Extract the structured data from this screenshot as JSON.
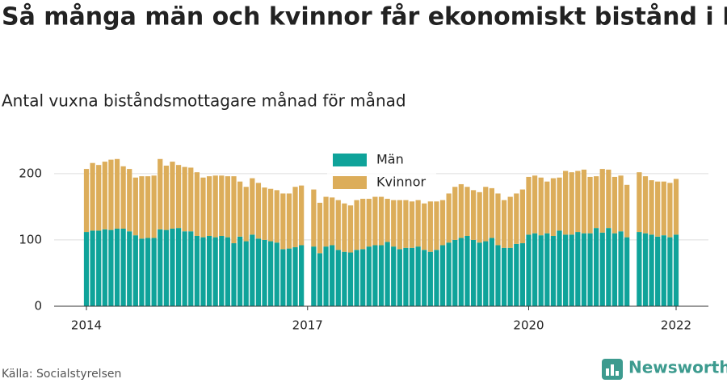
{
  "chart_data": {
    "type": "stacked_bar",
    "title": "Så många män och kvinnor får ekonomiskt bistånd i Kil",
    "subtitle": "Antal vuxna biståndsmottagare månad för månad",
    "source": "Källa: Socialstyrelsen",
    "logo": "Newsworthy",
    "categories": [
      "2014",
      null,
      null,
      null,
      null,
      null,
      null,
      null,
      null,
      null,
      null,
      null,
      null,
      null,
      null,
      null,
      null,
      null,
      null,
      null,
      null,
      null,
      null,
      null,
      null,
      null,
      null,
      null,
      null,
      null,
      null,
      null,
      null,
      null,
      null,
      null,
      "2017",
      null,
      null,
      null,
      null,
      null,
      null,
      null,
      null,
      null,
      null,
      null,
      null,
      null,
      null,
      null,
      null,
      null,
      null,
      null,
      null,
      null,
      null,
      null,
      null,
      null,
      null,
      null,
      null,
      null,
      null,
      null,
      null,
      null,
      null,
      null,
      "2020",
      null,
      null,
      null,
      null,
      null,
      null,
      null,
      null,
      null,
      null,
      null,
      null,
      null,
      null,
      null,
      null,
      null,
      null,
      null,
      null,
      null,
      null,
      null,
      "2022"
    ],
    "series": [
      {
        "name": "Män",
        "color": "#0fa39a",
        "values": [
          112,
          114,
          114,
          116,
          115,
          117,
          117,
          113,
          107,
          102,
          103,
          103,
          116,
          115,
          117,
          118,
          113,
          113,
          106,
          104,
          106,
          104,
          106,
          104,
          95,
          105,
          98,
          108,
          102,
          100,
          98,
          96,
          86,
          87,
          89,
          92,
          null,
          90,
          80,
          90,
          92,
          85,
          82,
          81,
          85,
          86,
          90,
          92,
          92,
          97,
          90,
          86,
          88,
          88,
          90,
          85,
          82,
          85,
          92,
          96,
          100,
          103,
          106,
          100,
          96,
          98,
          103,
          92,
          88,
          88,
          94,
          95,
          108,
          110,
          107,
          110,
          106,
          114,
          108,
          108,
          112,
          110,
          110,
          118,
          111,
          118,
          110,
          113,
          104,
          null,
          112,
          110,
          108,
          105,
          107,
          104,
          108
        ]
      },
      {
        "name": "Kvinnor",
        "color": "#dcad5a",
        "values": [
          95,
          102,
          99,
          102,
          106,
          105,
          94,
          94,
          87,
          94,
          93,
          94,
          106,
          97,
          101,
          95,
          97,
          96,
          96,
          90,
          90,
          93,
          91,
          92,
          101,
          83,
          82,
          85,
          84,
          79,
          79,
          79,
          84,
          83,
          91,
          90,
          null,
          86,
          76,
          75,
          72,
          75,
          73,
          71,
          75,
          76,
          72,
          73,
          73,
          65,
          70,
          74,
          72,
          70,
          70,
          70,
          76,
          73,
          68,
          74,
          80,
          81,
          74,
          75,
          76,
          82,
          75,
          78,
          72,
          77,
          76,
          81,
          87,
          87,
          87,
          78,
          87,
          80,
          96,
          94,
          92,
          96,
          85,
          78,
          96,
          88,
          85,
          84,
          79,
          null,
          90,
          86,
          82,
          83,
          81,
          82,
          84
        ]
      }
    ],
    "ylim": [
      0,
      240
    ],
    "yticks": [
      0,
      100,
      200
    ],
    "grid": true,
    "legend": "top"
  }
}
